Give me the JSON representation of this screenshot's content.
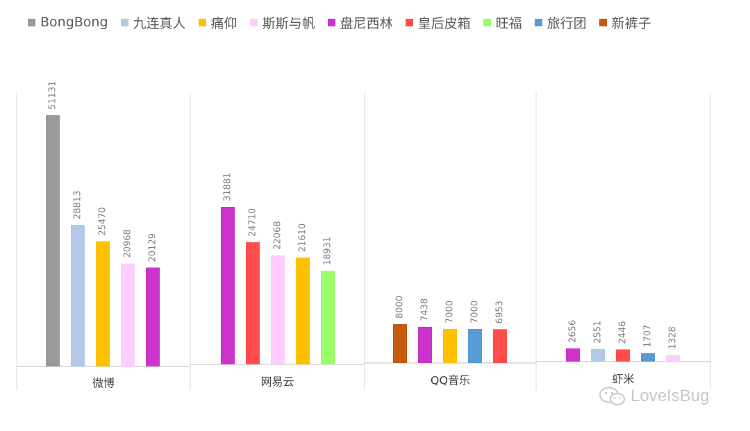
{
  "chart_data": {
    "type": "bar",
    "title": "",
    "legend": {
      "position": "top",
      "entries": [
        {
          "name": "BongBong",
          "color": "#9a9a9a"
        },
        {
          "name": "九连真人",
          "color": "#b4c7e7"
        },
        {
          "name": "痛仰",
          "color": "#ffc000"
        },
        {
          "name": "斯斯与帆",
          "color": "#ffccff"
        },
        {
          "name": "盘尼西林",
          "color": "#cc33cc"
        },
        {
          "name": "皇后皮箱",
          "color": "#ff4d4d"
        },
        {
          "name": "旺福",
          "color": "#99ff66"
        },
        {
          "name": "旅行团",
          "color": "#5b9bd5"
        },
        {
          "name": "新裤子",
          "color": "#c55a11"
        }
      ]
    },
    "panels": [
      {
        "category": "微博",
        "bars": [
          {
            "series": "BongBong",
            "value": 51131
          },
          {
            "series": "九连真人",
            "value": 28813
          },
          {
            "series": "痛仰",
            "value": 25470
          },
          {
            "series": "斯斯与帆",
            "value": 20968
          },
          {
            "series": "盘尼西林",
            "value": 20129
          }
        ]
      },
      {
        "category": "网易云",
        "bars": [
          {
            "series": "盘尼西林",
            "value": 31881
          },
          {
            "series": "皇后皮箱",
            "value": 24710
          },
          {
            "series": "斯斯与帆",
            "value": 22068
          },
          {
            "series": "痛仰",
            "value": 21610
          },
          {
            "series": "旺福",
            "value": 18931
          }
        ]
      },
      {
        "category": "QQ音乐",
        "bars": [
          {
            "series": "新裤子",
            "value": 8000
          },
          {
            "series": "盘尼西林",
            "value": 7438
          },
          {
            "series": "痛仰",
            "value": 7000
          },
          {
            "series": "旅行团",
            "value": 7000
          },
          {
            "series": "皇后皮箱",
            "value": 6953
          }
        ]
      },
      {
        "category": "虾米",
        "bars": [
          {
            "series": "盘尼西林",
            "value": 2656
          },
          {
            "series": "九连真人",
            "value": 2551
          },
          {
            "series": "皇后皮箱",
            "value": 2446
          },
          {
            "series": "旅行团",
            "value": 1707
          },
          {
            "series": "斯斯与帆",
            "value": 1328
          }
        ]
      }
    ],
    "grid": false
  },
  "watermark": {
    "text": "LoveIsBug",
    "icon": "wechat-icon"
  }
}
